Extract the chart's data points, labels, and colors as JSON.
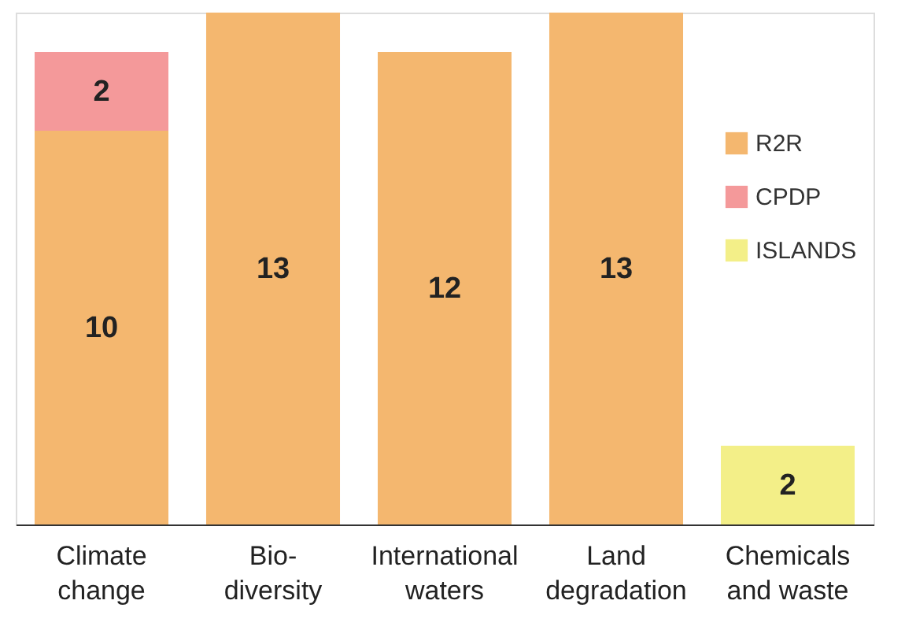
{
  "chart_data": {
    "type": "bar",
    "stacked": true,
    "data_labels": true,
    "legend": "right",
    "grid": false,
    "categories": [
      "Climate\nchange",
      "Bio-\ndiversity",
      "International\nwaters",
      "Land\ndegradation",
      "Chemicals\nand waste"
    ],
    "series": [
      {
        "name": "R2R",
        "color": "#f4b76f",
        "values": [
          10,
          13,
          12,
          13,
          null
        ]
      },
      {
        "name": "CPDP",
        "color": "#f4999a",
        "values": [
          2,
          null,
          null,
          null,
          null
        ]
      },
      {
        "name": "ISLANDS",
        "color": "#f3ef88",
        "values": [
          null,
          null,
          null,
          null,
          2
        ]
      }
    ]
  }
}
